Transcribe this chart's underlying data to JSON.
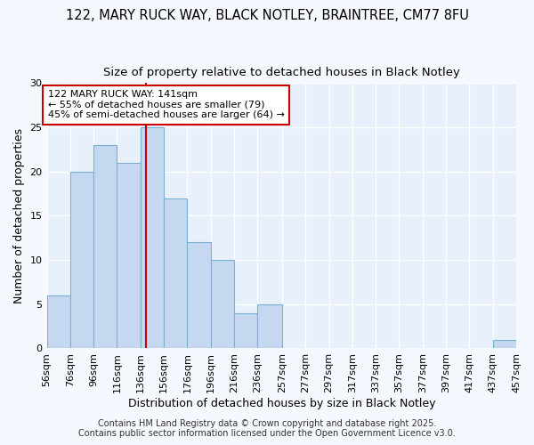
{
  "title1": "122, MARY RUCK WAY, BLACK NOTLEY, BRAINTREE, CM77 8FU",
  "title2": "Size of property relative to detached houses in Black Notley",
  "xlabel": "Distribution of detached houses by size in Black Notley",
  "ylabel": "Number of detached properties",
  "bin_edges": [
    56,
    76,
    96,
    116,
    136,
    156,
    176,
    196,
    216,
    236,
    257,
    277,
    297,
    317,
    337,
    357,
    377,
    397,
    417,
    437,
    457
  ],
  "counts": [
    6,
    20,
    23,
    21,
    25,
    17,
    12,
    10,
    4,
    5,
    0,
    0,
    0,
    0,
    0,
    0,
    0,
    0,
    0,
    1
  ],
  "bar_color": "#c5d8f0",
  "bar_edge_color": "#7aafd4",
  "property_size": 141,
  "vline_color": "#cc0000",
  "annotation_line1": "122 MARY RUCK WAY: 141sqm",
  "annotation_line2": "← 55% of detached houses are smaller (79)",
  "annotation_line3": "45% of semi-detached houses are larger (64) →",
  "annotation_box_color": "#ffffff",
  "annotation_box_edge": "#cc0000",
  "ylim": [
    0,
    30
  ],
  "yticks": [
    0,
    5,
    10,
    15,
    20,
    25,
    30
  ],
  "footer1": "Contains HM Land Registry data © Crown copyright and database right 2025.",
  "footer2": "Contains public sector information licensed under the Open Government Licence v3.0.",
  "bg_color": "#f5f8ff",
  "plot_bg_color": "#e8f0fc",
  "grid_color": "#ffffff",
  "title1_fontsize": 10.5,
  "title2_fontsize": 9.5,
  "axis_label_fontsize": 9,
  "tick_fontsize": 8,
  "footer_fontsize": 7
}
